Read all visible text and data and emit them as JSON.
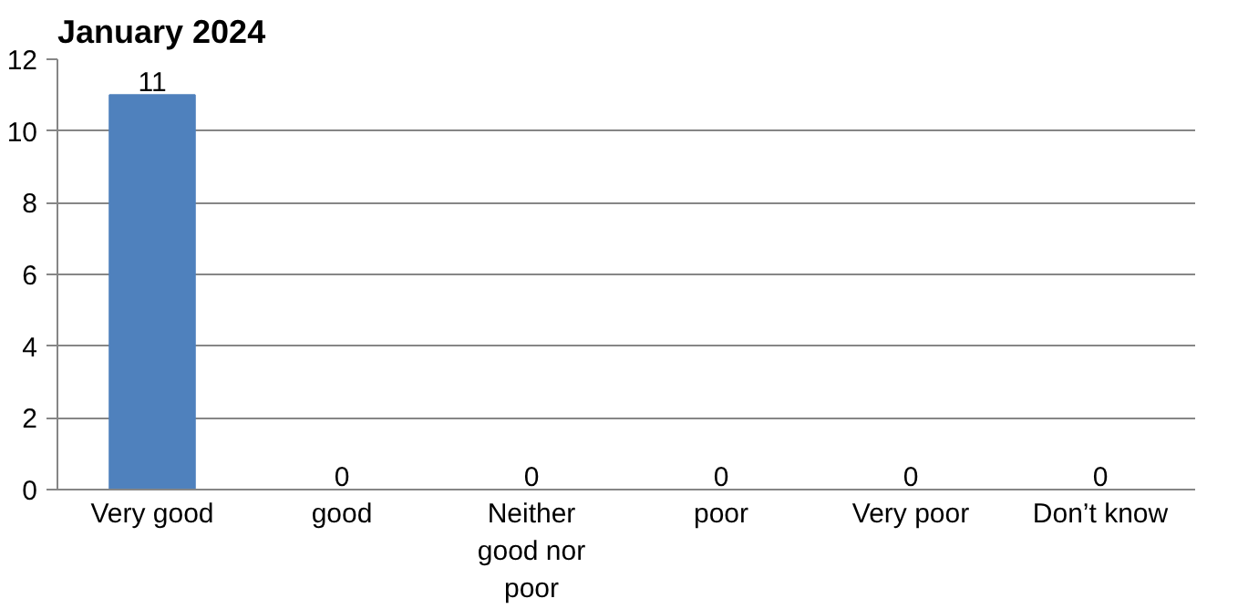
{
  "chart_data": {
    "type": "bar",
    "title": "January 2024",
    "categories": [
      "Very good",
      "good",
      "Neither good nor poor",
      "poor",
      "Very poor",
      "Don’t know"
    ],
    "values": [
      11,
      0,
      0,
      0,
      0,
      0
    ],
    "color": "#4f81bd",
    "ylim": [
      0,
      12
    ],
    "yticks": [
      0,
      2,
      4,
      6,
      8,
      10,
      12
    ],
    "grid": "y",
    "data_labels": true
  }
}
